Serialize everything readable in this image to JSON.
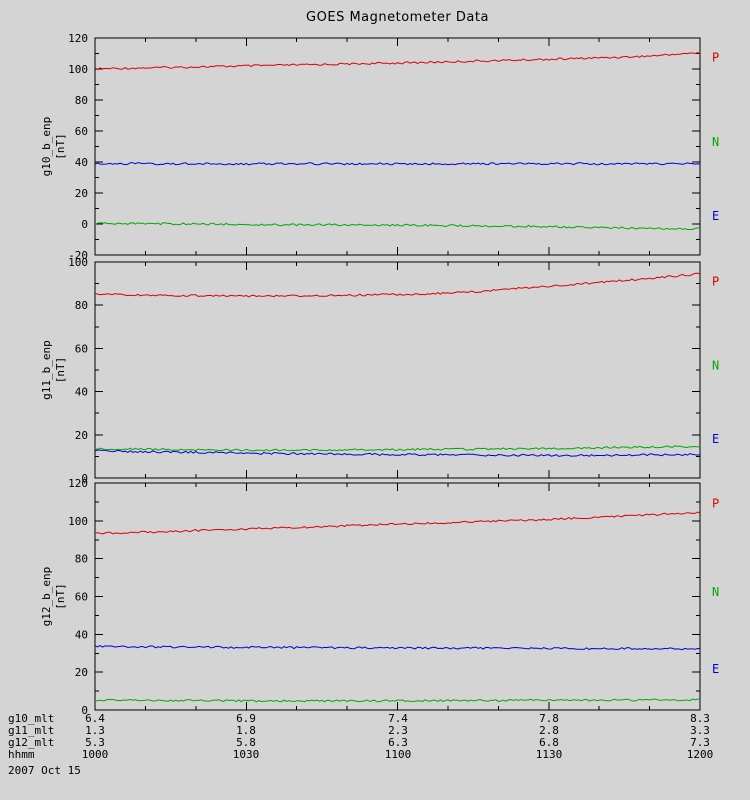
{
  "title": "GOES Magnetometer Data",
  "bg_color": "#d4d4d4",
  "axis_color": "#000000",
  "xaxis": {
    "label": "hhmm",
    "tick_labels": [
      "1000",
      "1030",
      "1100",
      "1130",
      "1200"
    ],
    "date": "2007 Oct 15"
  },
  "chart_data": [
    {
      "type": "line",
      "id": "g10",
      "ylabel": "g10_b_enp",
      "yunit": "[nT]",
      "ylim": [
        -20,
        120
      ],
      "yticks": [
        -20,
        0,
        20,
        40,
        60,
        80,
        100,
        120
      ],
      "x_ticks": [
        "1000",
        "1030",
        "1100",
        "1130",
        "1200"
      ],
      "legend_position": "right",
      "series": [
        {
          "name": "P",
          "color": "#dd0000",
          "values": [
            100.1,
            100.4,
            100.7,
            101.0,
            101.3,
            101.6,
            101.9,
            102.2,
            102.5,
            102.8,
            103.1,
            103.4,
            103.7,
            104.0,
            104.4,
            104.8,
            105.2,
            105.6,
            106.0,
            106.4,
            106.8,
            107.3,
            107.8,
            108.4,
            109.6,
            110.4
          ]
        },
        {
          "name": "N",
          "color": "#00a800",
          "values": [
            0.3,
            0.3,
            0.2,
            0.1,
            0.1,
            0.0,
            -0.3,
            -0.5,
            -0.5,
            -0.4,
            -0.5,
            -0.6,
            -0.6,
            -0.8,
            -1.0,
            -1.1,
            -1.2,
            -1.4,
            -1.5,
            -1.8,
            -2.0,
            -2.2,
            -2.5,
            -2.7,
            -2.9,
            -3.1
          ]
        },
        {
          "name": "E",
          "color": "#0000dd",
          "values": [
            39.0,
            38.9,
            39.0,
            38.8,
            38.9,
            38.9,
            38.8,
            38.9,
            39.0,
            38.9,
            38.8,
            38.9,
            38.8,
            38.7,
            38.9,
            38.8,
            38.9,
            39.0,
            38.9,
            39.0,
            38.9,
            38.8,
            38.9,
            38.8,
            38.9,
            39.0
          ]
        }
      ]
    },
    {
      "type": "line",
      "id": "g11",
      "ylabel": "g11_b_enp",
      "yunit": "[nT]",
      "ylim": [
        0,
        100
      ],
      "yticks": [
        0,
        20,
        40,
        60,
        80,
        100
      ],
      "x_ticks": [
        "1000",
        "1030",
        "1100",
        "1130",
        "1200"
      ],
      "legend_position": "right",
      "series": [
        {
          "name": "P",
          "color": "#dd0000",
          "values": [
            85.2,
            85.0,
            84.7,
            84.5,
            84.4,
            84.3,
            84.3,
            84.4,
            84.4,
            84.5,
            84.6,
            84.7,
            84.9,
            85.1,
            85.4,
            85.8,
            86.3,
            87.6,
            88.3,
            89.0,
            89.8,
            90.7,
            91.6,
            92.5,
            93.5,
            94.6
          ]
        },
        {
          "name": "N",
          "color": "#00a800",
          "values": [
            13.6,
            13.4,
            13.3,
            13.2,
            13.1,
            13.0,
            13.0,
            12.9,
            13.0,
            13.0,
            13.0,
            13.1,
            13.1,
            13.2,
            13.3,
            13.3,
            13.4,
            13.5,
            13.6,
            13.7,
            13.9,
            14.0,
            14.2,
            14.3,
            14.5,
            14.6
          ]
        },
        {
          "name": "E",
          "color": "#0000dd",
          "values": [
            12.6,
            12.4,
            12.2,
            12.0,
            11.9,
            11.7,
            11.6,
            11.4,
            11.3,
            11.2,
            11.1,
            11.0,
            10.9,
            10.8,
            10.8,
            10.7,
            10.6,
            10.5,
            10.5,
            10.4,
            10.5,
            10.5,
            10.6,
            10.7,
            10.8,
            10.9
          ]
        }
      ]
    },
    {
      "type": "line",
      "id": "g12",
      "ylabel": "g12_b_enp",
      "yunit": "[nT]",
      "ylim": [
        0,
        120
      ],
      "yticks": [
        0,
        20,
        40,
        60,
        80,
        100,
        120
      ],
      "x_ticks": [
        "1000",
        "1030",
        "1100",
        "1130",
        "1200"
      ],
      "legend_position": "right",
      "series": [
        {
          "name": "P",
          "color": "#dd0000",
          "values": [
            93.2,
            93.6,
            94.0,
            94.4,
            94.8,
            95.2,
            95.6,
            96.0,
            96.4,
            96.8,
            97.2,
            97.6,
            98.0,
            98.4,
            98.8,
            99.2,
            99.6,
            100.0,
            100.4,
            100.9,
            101.4,
            102.0,
            102.6,
            103.2,
            103.8,
            104.4
          ]
        },
        {
          "name": "N",
          "color": "#00a800",
          "values": [
            5.2,
            5.1,
            5.1,
            5.0,
            5.0,
            4.9,
            4.9,
            4.8,
            4.8,
            4.8,
            4.8,
            4.8,
            4.8,
            4.9,
            4.9,
            5.0,
            5.0,
            5.0,
            5.1,
            5.1,
            5.2,
            5.2,
            5.3,
            5.3,
            5.4,
            5.4
          ]
        },
        {
          "name": "E",
          "color": "#0000dd",
          "values": [
            33.6,
            33.5,
            33.4,
            33.3,
            33.3,
            33.2,
            33.1,
            33.1,
            33.0,
            33.0,
            32.9,
            32.9,
            32.8,
            32.8,
            32.7,
            32.7,
            32.7,
            32.6,
            32.6,
            32.6,
            32.5,
            32.5,
            32.5,
            32.4,
            32.4,
            32.4
          ]
        }
      ]
    }
  ],
  "footer": {
    "rows": [
      {
        "label": "g10_mlt",
        "values": [
          "6.4",
          "6.9",
          "7.4",
          "7.8",
          "8.3"
        ]
      },
      {
        "label": "g11_mlt",
        "values": [
          "1.3",
          "1.8",
          "2.3",
          "2.8",
          "3.3"
        ]
      },
      {
        "label": "g12_mlt",
        "values": [
          "5.3",
          "5.8",
          "6.3",
          "6.8",
          "7.3"
        ]
      },
      {
        "label": "hhmm",
        "values": [
          "1000",
          "1030",
          "1100",
          "1130",
          "1200"
        ]
      }
    ],
    "date": "2007 Oct 15"
  }
}
